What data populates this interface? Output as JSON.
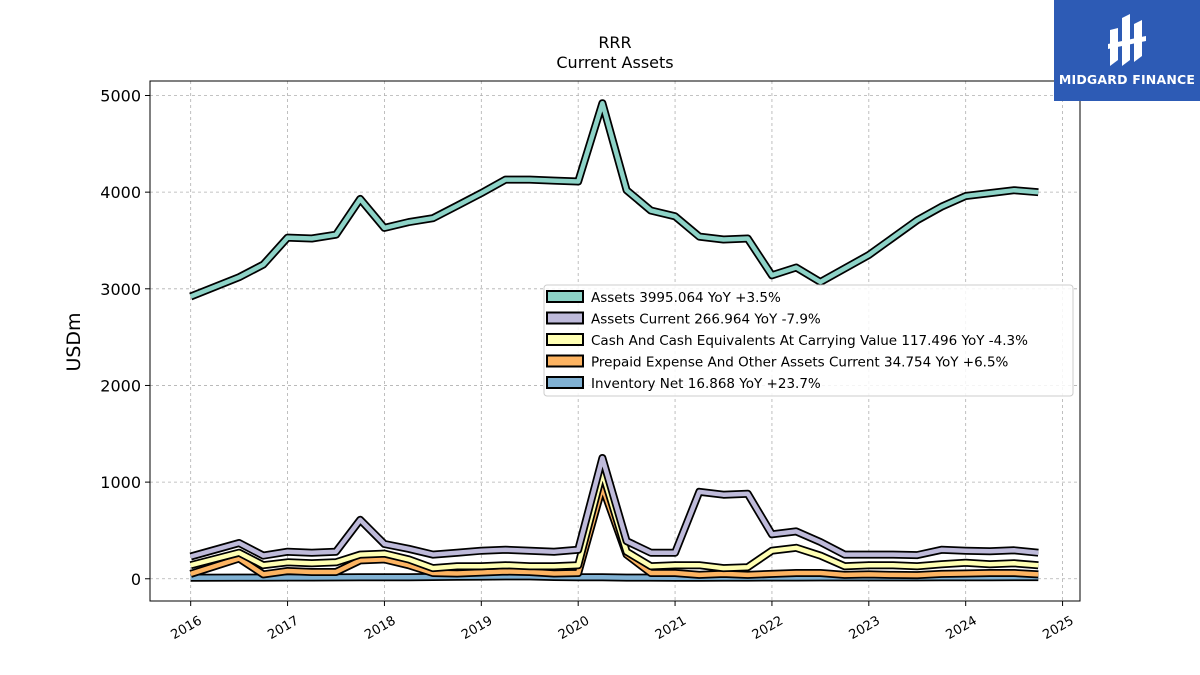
{
  "chart_data": {
    "type": "area",
    "title": "RRR",
    "subtitle": "Current  Assets",
    "ylabel": "USDm",
    "xlabel": "",
    "ylim": [
      -230,
      5150
    ],
    "xlim": [
      2015.58,
      2025.18
    ],
    "yticks": [
      0,
      1000,
      2000,
      3000,
      4000,
      5000
    ],
    "xticks": [
      "2016",
      "2017",
      "2018",
      "2019",
      "2020",
      "2021",
      "2022",
      "2023",
      "2024",
      "2025"
    ],
    "grid": true,
    "legend_position": "center-right",
    "x": [
      2016.0,
      2016.5,
      2016.75,
      2017.0,
      2017.25,
      2017.5,
      2017.75,
      2018.0,
      2018.25,
      2018.5,
      2018.75,
      2019.0,
      2019.25,
      2019.5,
      2019.75,
      2020.0,
      2020.25,
      2020.5,
      2020.75,
      2021.0,
      2021.25,
      2021.5,
      2021.75,
      2022.0,
      2022.25,
      2022.5,
      2022.75,
      2023.0,
      2023.25,
      2023.5,
      2023.75,
      2024.0,
      2024.25,
      2024.5,
      2024.75
    ],
    "series": [
      {
        "name": "Assets",
        "legend": "Assets  3995.064 YoY +3.5%",
        "color": "#8dd3c7",
        "values": [
          2920,
          3120,
          3250,
          3530,
          3520,
          3560,
          3930,
          3630,
          3690,
          3730,
          3860,
          3990,
          4130,
          4130,
          4120,
          4110,
          4920,
          4020,
          3810,
          3750,
          3540,
          3510,
          3520,
          3140,
          3220,
          3070,
          3210,
          3350,
          3530,
          3710,
          3850,
          3960,
          3990,
          4020,
          4000
        ]
      },
      {
        "name": "Assets Current",
        "legend": "Assets Current  266.964 YoY -7.9%",
        "color": "#bebada",
        "values": [
          230,
          370,
          240,
          280,
          270,
          280,
          610,
          360,
          310,
          250,
          270,
          290,
          300,
          290,
          280,
          300,
          1250,
          390,
          270,
          270,
          900,
          870,
          880,
          460,
          490,
          380,
          250,
          250,
          250,
          245,
          300,
          290,
          285,
          295,
          270
        ]
      },
      {
        "name": "Cash And Cash Equivalents At Carrying Value",
        "legend": "Cash And Cash Equivalents At Carrying Value  117.496 YoY -4.3%",
        "color": "#ffffb3",
        "values": [
          140,
          270,
          140,
          170,
          160,
          170,
          250,
          260,
          200,
          110,
          130,
          130,
          140,
          130,
          130,
          140,
          1100,
          280,
          130,
          140,
          140,
          110,
          120,
          290,
          320,
          240,
          130,
          140,
          140,
          130,
          150,
          165,
          150,
          160,
          140
        ]
      },
      {
        "name": "Prepaid Expense And Other Assets Current",
        "legend": "Prepaid Expense And Other Assets Current  34.754 YoY +6.5%",
        "color": "#fdb462",
        "values": [
          50,
          210,
          45,
          80,
          70,
          70,
          190,
          200,
          140,
          60,
          55,
          65,
          75,
          70,
          55,
          60,
          950,
          250,
          60,
          60,
          40,
          50,
          40,
          50,
          60,
          60,
          40,
          45,
          40,
          38,
          50,
          55,
          60,
          60,
          45
        ]
      },
      {
        "name": "Inventory Net",
        "legend": "Inventory Net  16.868 YoY +23.7%",
        "color": "#80b1d3",
        "values": [
          10,
          12,
          12,
          13,
          13,
          14,
          15,
          15,
          16,
          18,
          20,
          22,
          24,
          25,
          18,
          16,
          15,
          12,
          12,
          11,
          11,
          12,
          12,
          13,
          13,
          14,
          14,
          14,
          14,
          14,
          15,
          15,
          16,
          17,
          17
        ]
      }
    ]
  },
  "logo": {
    "text": "MIDGARD FINANCE"
  }
}
